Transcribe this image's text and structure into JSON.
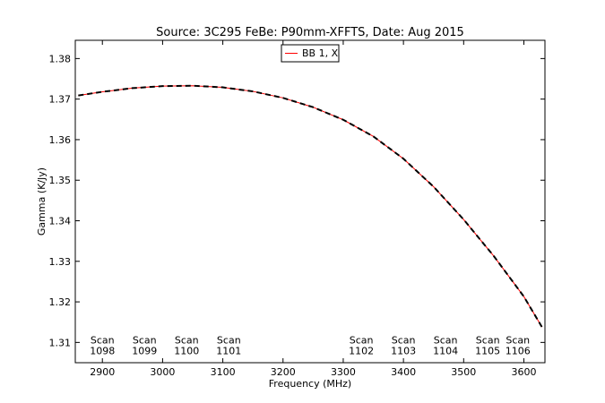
{
  "chart_data": {
    "type": "line",
    "title": "Source: 3C295 FeBe: P90mm-XFFTS, Date: Aug 2015",
    "xlabel": "Frequency (MHz)",
    "ylabel": "Gamma (K/Jy)",
    "xlim": [
      2855,
      3635
    ],
    "ylim": [
      1.305,
      1.3845
    ],
    "xticks": [
      2900,
      3000,
      3100,
      3200,
      3300,
      3400,
      3500,
      3600
    ],
    "yticks": [
      1.31,
      1.32,
      1.33,
      1.34,
      1.35,
      1.36,
      1.37,
      1.38
    ],
    "xtick_labels": [
      "2900",
      "3000",
      "3100",
      "3200",
      "3300",
      "3400",
      "3500",
      "3600"
    ],
    "ytick_labels": [
      "1.31",
      "1.32",
      "1.33",
      "1.34",
      "1.35",
      "1.36",
      "1.37",
      "1.38"
    ],
    "grid": false,
    "legend": {
      "placement": "top-center",
      "entries": [
        "BB 1, X"
      ]
    },
    "series": [
      {
        "name": "BB 1, X",
        "color": "#ff0000",
        "style": "solid",
        "x": [
          2860,
          2900,
          2950,
          3000,
          3050,
          3100,
          3150,
          3200,
          3250,
          3300,
          3350,
          3400,
          3450,
          3500,
          3550,
          3600,
          3630
        ],
        "values": [
          1.3709,
          1.3718,
          1.3727,
          1.3732,
          1.3733,
          1.3729,
          1.3719,
          1.3703,
          1.368,
          1.3649,
          1.3608,
          1.3553,
          1.3484,
          1.3403,
          1.3313,
          1.3213,
          1.3138
        ]
      },
      {
        "name": "",
        "color": "#000000",
        "style": "dashed",
        "x": [
          2860,
          2900,
          2950,
          3000,
          3050,
          3100,
          3150,
          3200,
          3250,
          3300,
          3350,
          3400,
          3450,
          3500,
          3550,
          3600,
          3630
        ],
        "values": [
          1.3709,
          1.3718,
          1.3727,
          1.3732,
          1.3733,
          1.3729,
          1.3719,
          1.3703,
          1.368,
          1.3649,
          1.3608,
          1.3553,
          1.3484,
          1.3403,
          1.3313,
          1.3213,
          1.3138
        ]
      }
    ],
    "annotations": [
      {
        "line1": "Scan",
        "line2": "1098",
        "x": 2900,
        "y": 1.3095
      },
      {
        "line1": "Scan",
        "line2": "1099",
        "x": 2970,
        "y": 1.3095
      },
      {
        "line1": "Scan",
        "line2": "1100",
        "x": 3040,
        "y": 1.3095
      },
      {
        "line1": "Scan",
        "line2": "1101",
        "x": 3110,
        "y": 1.3095
      },
      {
        "line1": "Scan",
        "line2": "1102",
        "x": 3330,
        "y": 1.3095
      },
      {
        "line1": "Scan",
        "line2": "1103",
        "x": 3400,
        "y": 1.3095
      },
      {
        "line1": "Scan",
        "line2": "1104",
        "x": 3470,
        "y": 1.3095
      },
      {
        "line1": "Scan",
        "line2": "1105",
        "x": 3540,
        "y": 1.3095
      },
      {
        "line1": "Scan",
        "line2": "1106",
        "x": 3590,
        "y": 1.3095
      }
    ]
  }
}
